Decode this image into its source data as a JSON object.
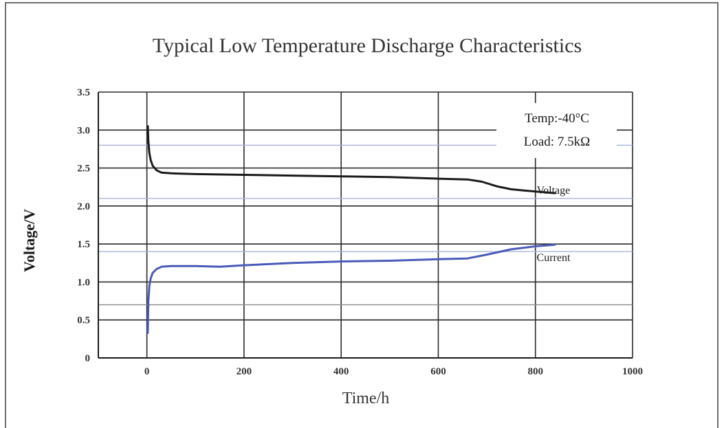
{
  "chart_data": {
    "type": "line",
    "title": "Typical Low Temperature Discharge Characteristics",
    "xlabel": "Time/h",
    "ylabel": "Voltage/V",
    "xlim": [
      -100,
      1000
    ],
    "ylim": [
      0,
      3.5
    ],
    "x_ticks": [
      0,
      200,
      400,
      600,
      800,
      1000
    ],
    "y_ticks": [
      0,
      0.5,
      1.0,
      1.5,
      2.0,
      2.5,
      3.0,
      3.5
    ],
    "x_tick_labels": [
      "0",
      "200",
      "400",
      "600",
      "800",
      "1000"
    ],
    "y_tick_labels": [
      "0",
      "0.5",
      "1.0",
      "1.5",
      "2.0",
      "2.5",
      "3.0",
      "3.5"
    ],
    "grid": true,
    "conditions": [
      "Temp:-40°C",
      "Load: 7.5kΩ"
    ],
    "series": [
      {
        "name": "Voltage",
        "color": "#1a1a1a",
        "x": [
          2,
          3,
          5,
          8,
          12,
          20,
          30,
          50,
          100,
          200,
          300,
          400,
          500,
          600,
          660,
          690,
          720,
          750,
          800,
          840
        ],
        "y": [
          3.05,
          2.85,
          2.7,
          2.6,
          2.53,
          2.47,
          2.44,
          2.43,
          2.42,
          2.41,
          2.4,
          2.39,
          2.38,
          2.36,
          2.35,
          2.32,
          2.26,
          2.22,
          2.19,
          2.17
        ]
      },
      {
        "name": "Current",
        "color": "#4a5ab8",
        "x": [
          2,
          3,
          5,
          8,
          12,
          20,
          30,
          50,
          100,
          150,
          200,
          300,
          400,
          500,
          600,
          660,
          700,
          750,
          800,
          840
        ],
        "y": [
          0.33,
          0.75,
          0.95,
          1.05,
          1.12,
          1.17,
          1.2,
          1.21,
          1.21,
          1.2,
          1.22,
          1.25,
          1.27,
          1.28,
          1.3,
          1.31,
          1.36,
          1.43,
          1.47,
          1.49
        ]
      }
    ],
    "extra_lines": [
      {
        "y": 2.8,
        "color": "#a8b4d8"
      },
      {
        "y": 2.1,
        "color": "#a8b4d8"
      },
      {
        "y": 1.4,
        "color": "#a8b4d8"
      },
      {
        "y": 0.7,
        "color": "#8a8a8a"
      }
    ]
  }
}
